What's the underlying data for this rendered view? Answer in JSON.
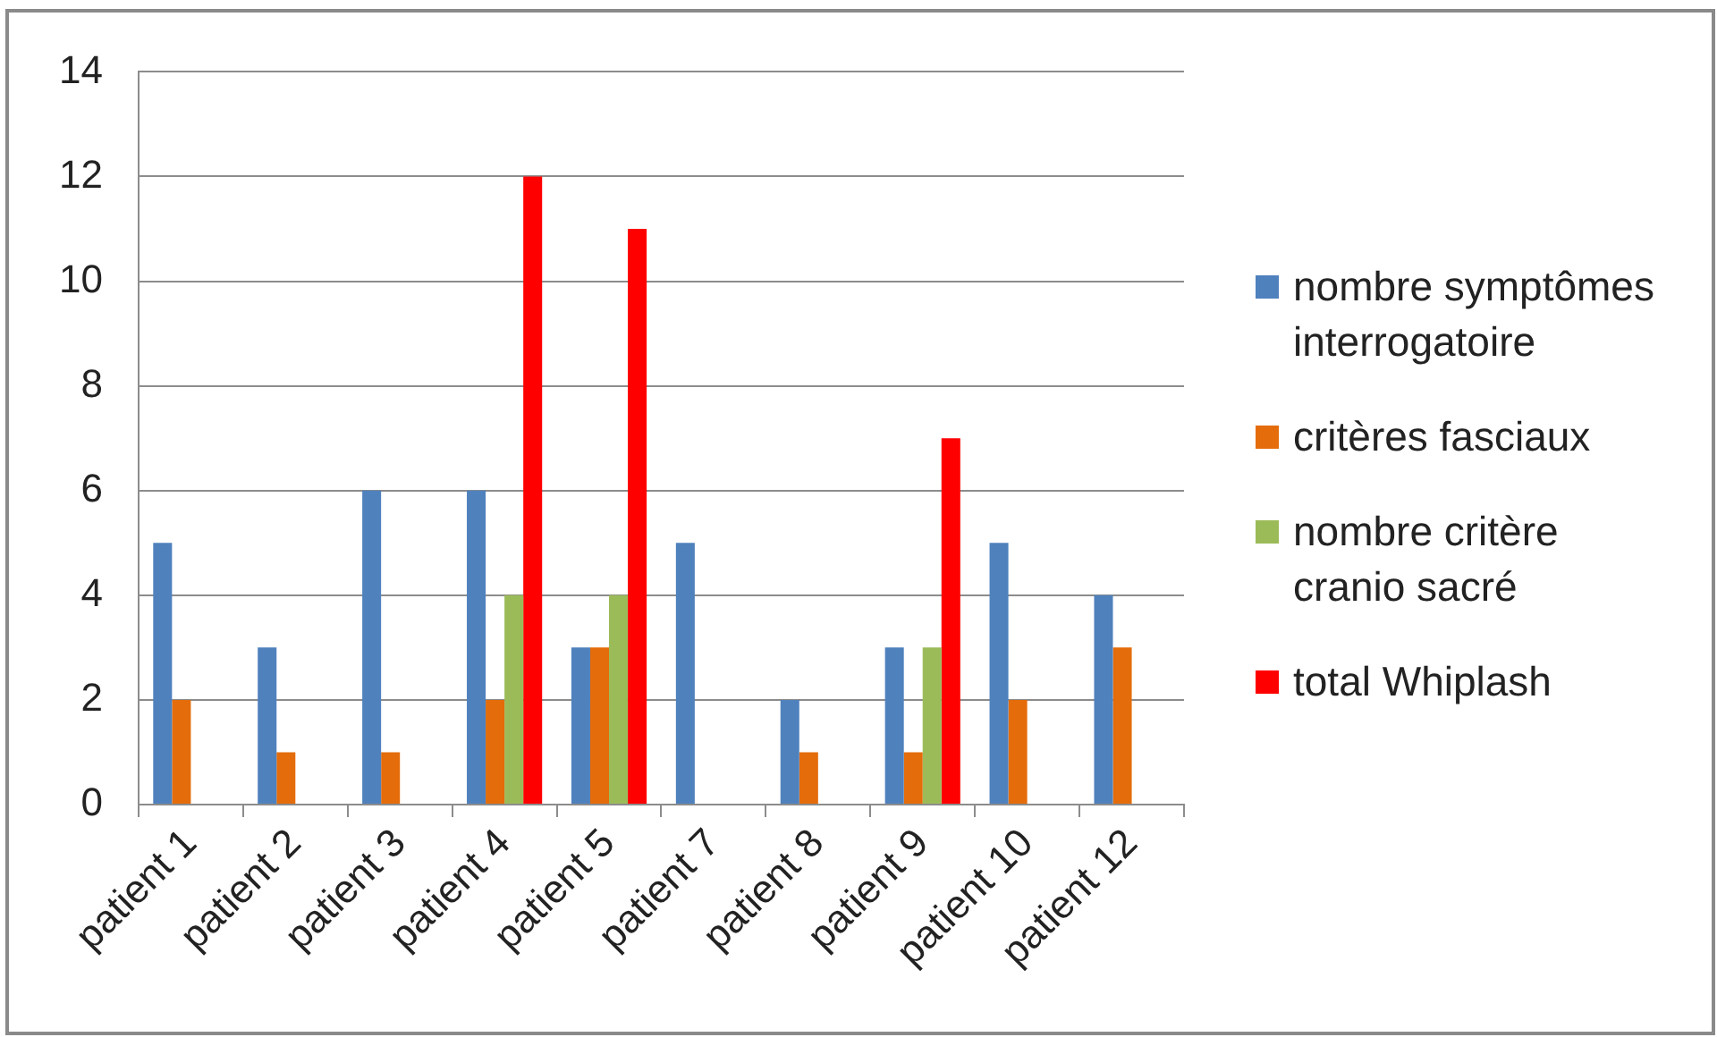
{
  "chart_data": {
    "type": "bar",
    "categories": [
      "patient 1",
      "patient 2",
      "patient 3",
      "patient 4",
      "patient 5",
      "patient 7",
      "patient 8",
      "patient 9",
      "patient 10",
      "patient 12"
    ],
    "series": [
      {
        "name": "nombre symptômes interrogatoire",
        "color": "#4f81bd",
        "values": [
          5,
          3,
          6,
          6,
          3,
          5,
          2,
          3,
          5,
          4
        ]
      },
      {
        "name": "critères fasciaux",
        "color": "#e46c0a",
        "values": [
          2,
          1,
          1,
          2,
          3,
          null,
          1,
          1,
          2,
          3
        ]
      },
      {
        "name": "nombre critère cranio sacré",
        "color": "#9bbb59",
        "values": [
          null,
          null,
          null,
          4,
          4,
          null,
          null,
          3,
          null,
          null
        ]
      },
      {
        "name": "total Whiplash",
        "color": "#ff0000",
        "values": [
          null,
          null,
          null,
          12,
          11,
          null,
          null,
          7,
          null,
          null
        ]
      }
    ],
    "ylim": [
      0,
      14
    ],
    "yticks": [
      0,
      2,
      4,
      6,
      8,
      10,
      12,
      14
    ],
    "grid": "y",
    "legend": "right"
  }
}
